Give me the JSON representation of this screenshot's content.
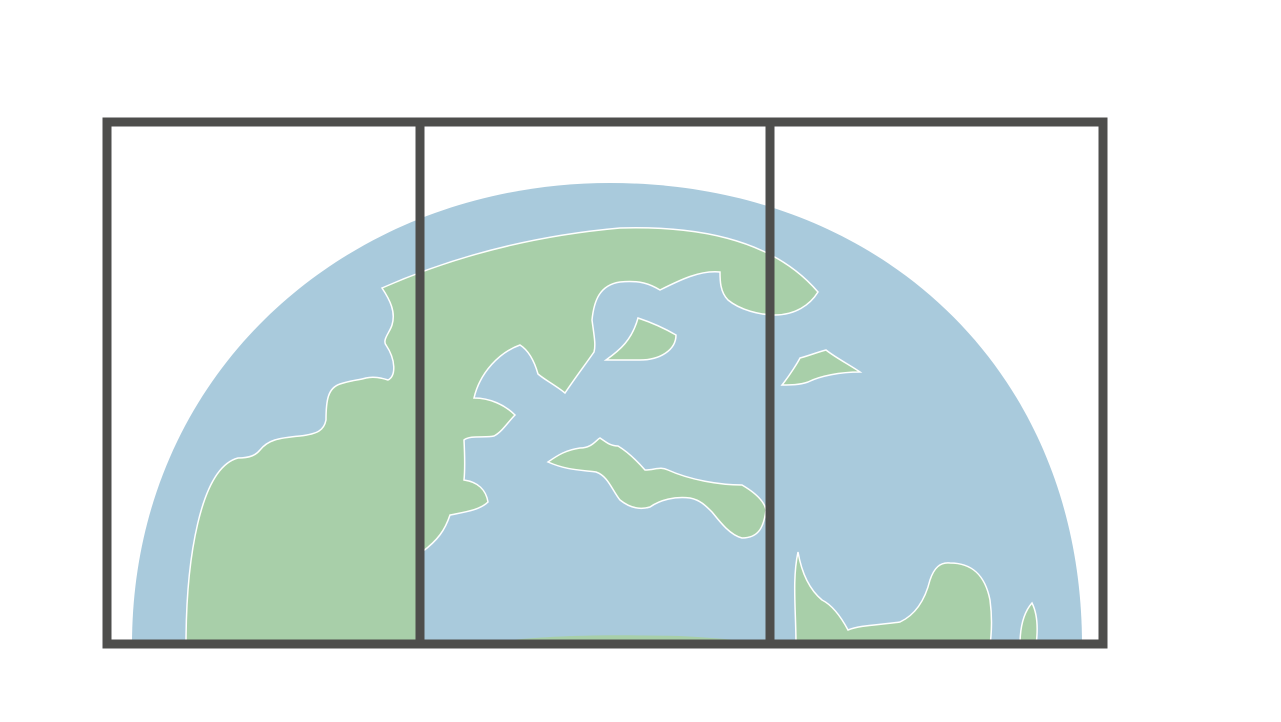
{
  "illustration": {
    "subject": "globe-behind-window-icon",
    "colors": {
      "background": "#ffffff",
      "ocean": "#a9cadc",
      "land": "#a8cfa9",
      "frame": "#4e4e4c",
      "outline": "#ffffff"
    },
    "window": {
      "panes": 3
    }
  }
}
